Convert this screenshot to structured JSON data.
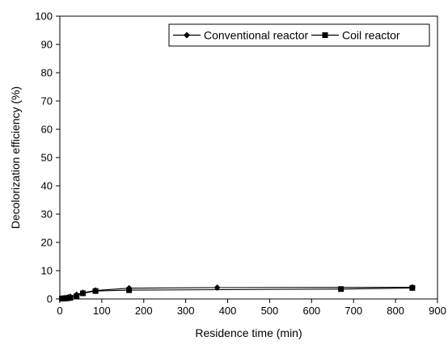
{
  "chart_data": {
    "type": "line",
    "xlabel": "Residence time (min)",
    "ylabel": "Decolorization efficiency (%)",
    "xlim": [
      0,
      900
    ],
    "ylim": [
      0,
      100
    ],
    "xticks": [
      0,
      100,
      200,
      300,
      400,
      500,
      600,
      700,
      800,
      900
    ],
    "yticks": [
      0,
      10,
      20,
      30,
      40,
      50,
      60,
      70,
      80,
      90,
      100
    ],
    "grid": false,
    "legend": "top-right",
    "series": [
      {
        "name": "Conventional reactor",
        "marker": "diamond",
        "color": "#000000",
        "x": [
          5,
          10,
          15,
          20,
          25,
          40,
          55,
          85,
          165,
          375,
          840
        ],
        "y": [
          0.2,
          0.3,
          0.4,
          0.6,
          0.8,
          1.5,
          2.2,
          3.0,
          3.8,
          4.0,
          4.1
        ]
      },
      {
        "name": "Coil reactor",
        "marker": "square",
        "color": "#000000",
        "x": [
          5,
          10,
          15,
          20,
          25,
          40,
          55,
          85,
          165,
          670,
          840
        ],
        "y": [
          0.1,
          0.2,
          0.2,
          0.3,
          0.4,
          1.0,
          2.0,
          2.8,
          3.1,
          3.5,
          3.9
        ]
      }
    ]
  }
}
